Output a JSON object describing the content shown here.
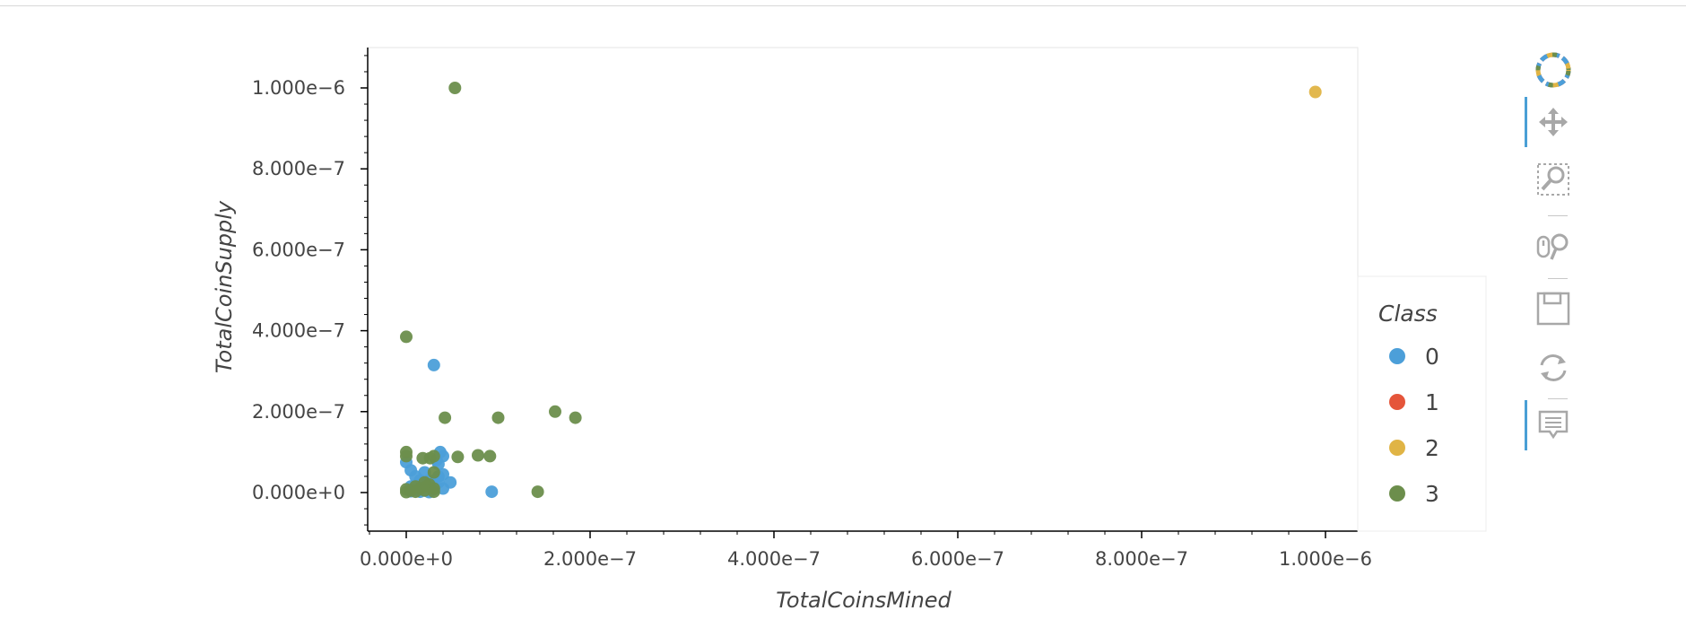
{
  "chart_data": {
    "type": "scatter",
    "title": "",
    "xlabel": "TotalCoinsMined",
    "ylabel": "TotalCoinSupply",
    "xlim": [
      -4e-08,
      1.04e-06
    ],
    "ylim": [
      -9e-08,
      1.1e-06
    ],
    "x_ticks": [
      {
        "value": 0,
        "label": "0.000e+0"
      },
      {
        "value": 2e-07,
        "label": "2.000e−7"
      },
      {
        "value": 4e-07,
        "label": "4.000e−7"
      },
      {
        "value": 6e-07,
        "label": "6.000e−7"
      },
      {
        "value": 8e-07,
        "label": "8.000e−7"
      },
      {
        "value": 1e-06,
        "label": "1.000e−6"
      }
    ],
    "y_ticks": [
      {
        "value": 0,
        "label": "0.000e+0"
      },
      {
        "value": 2e-07,
        "label": "2.000e−7"
      },
      {
        "value": 4e-07,
        "label": "4.000e−7"
      },
      {
        "value": 6e-07,
        "label": "6.000e−7"
      },
      {
        "value": 8e-07,
        "label": "8.000e−7"
      },
      {
        "value": 1e-06,
        "label": "1.000e−6"
      }
    ],
    "grid": false,
    "legend": {
      "title": "Class",
      "placement": "right",
      "entries": [
        {
          "label": "0",
          "color": "#4c9fd9"
        },
        {
          "label": "1",
          "color": "#e5553a"
        },
        {
          "label": "2",
          "color": "#e0b445"
        },
        {
          "label": "3",
          "color": "#6c8e4c"
        }
      ]
    },
    "series": [
      {
        "name": "0",
        "color": "#4c9fd9",
        "points": [
          [
            0,
            7.5e-08
          ],
          [
            5e-09,
            5.5e-08
          ],
          [
            1e-08,
            4e-08
          ],
          [
            1.5e-08,
            3e-08
          ],
          [
            2e-08,
            5e-08
          ],
          [
            2.5e-08,
            3e-08
          ],
          [
            3e-08,
            1.5e-08
          ],
          [
            3.5e-08,
            4e-08
          ],
          [
            1e-08,
            1e-08
          ],
          [
            5e-09,
            1.5e-08
          ],
          [
            2e-08,
            5e-09
          ],
          [
            4e-08,
            1e-08
          ],
          [
            2e-08,
            2e-08
          ],
          [
            3e-08,
            8e-09
          ],
          [
            3e-08,
            3.15e-07
          ],
          [
            3.7e-08,
            1e-07
          ],
          [
            4e-08,
            9e-08
          ],
          [
            3.3e-08,
            8e-08
          ],
          [
            3.5e-08,
            7e-08
          ],
          [
            4e-08,
            4.5e-08
          ],
          [
            4.8e-08,
            2.5e-08
          ],
          [
            9.3e-08,
            2e-09
          ],
          [
            2.5e-08,
            1e-09
          ],
          [
            1.5e-08,
            2e-09
          ],
          [
            5e-09,
            3e-09
          ],
          [
            3.5e-08,
            2.5e-08
          ]
        ]
      },
      {
        "name": "1",
        "color": "#e5553a",
        "points": []
      },
      {
        "name": "2",
        "color": "#e0b445",
        "points": [
          [
            9.89e-07,
            9.9e-07
          ]
        ]
      },
      {
        "name": "3",
        "color": "#6c8e4c",
        "points": [
          [
            5.3e-08,
            1e-06
          ],
          [
            0,
            3.85e-07
          ],
          [
            4.2e-08,
            1.85e-07
          ],
          [
            1e-07,
            1.85e-07
          ],
          [
            1.62e-07,
            2e-07
          ],
          [
            1.84e-07,
            1.85e-07
          ],
          [
            0,
            1e-07
          ],
          [
            0,
            9e-08
          ],
          [
            1.8e-08,
            8.5e-08
          ],
          [
            2.6e-08,
            8.5e-08
          ],
          [
            3e-08,
            9e-08
          ],
          [
            5.6e-08,
            8.8e-08
          ],
          [
            7.8e-08,
            9.2e-08
          ],
          [
            9.1e-08,
            9e-08
          ],
          [
            3e-08,
            5e-08
          ],
          [
            2e-08,
            2.5e-08
          ],
          [
            2.5e-08,
            2e-08
          ],
          [
            2.2e-08,
            1.5e-08
          ],
          [
            1e-08,
            1.5e-08
          ],
          [
            1.5e-08,
            1e-08
          ],
          [
            3e-08,
            1e-08
          ],
          [
            2e-08,
            5e-09
          ],
          [
            5e-09,
            5e-09
          ],
          [
            0,
            1e-09
          ],
          [
            0,
            8e-09
          ],
          [
            1e-08,
            2e-09
          ],
          [
            3e-08,
            2e-09
          ],
          [
            1.43e-07,
            2e-09
          ]
        ]
      }
    ]
  },
  "toolbar": {
    "tools": [
      {
        "name": "bokeh-logo",
        "label": "Bokeh"
      },
      {
        "name": "pan-tool",
        "label": "Pan"
      },
      {
        "name": "box-zoom-tool",
        "label": "Box Zoom"
      },
      {
        "name": "wheel-zoom-tool",
        "label": "Wheel Zoom"
      },
      {
        "name": "save-tool",
        "label": "Save"
      },
      {
        "name": "reset-tool",
        "label": "Reset"
      },
      {
        "name": "hover-tool",
        "label": "Hover"
      }
    ]
  }
}
